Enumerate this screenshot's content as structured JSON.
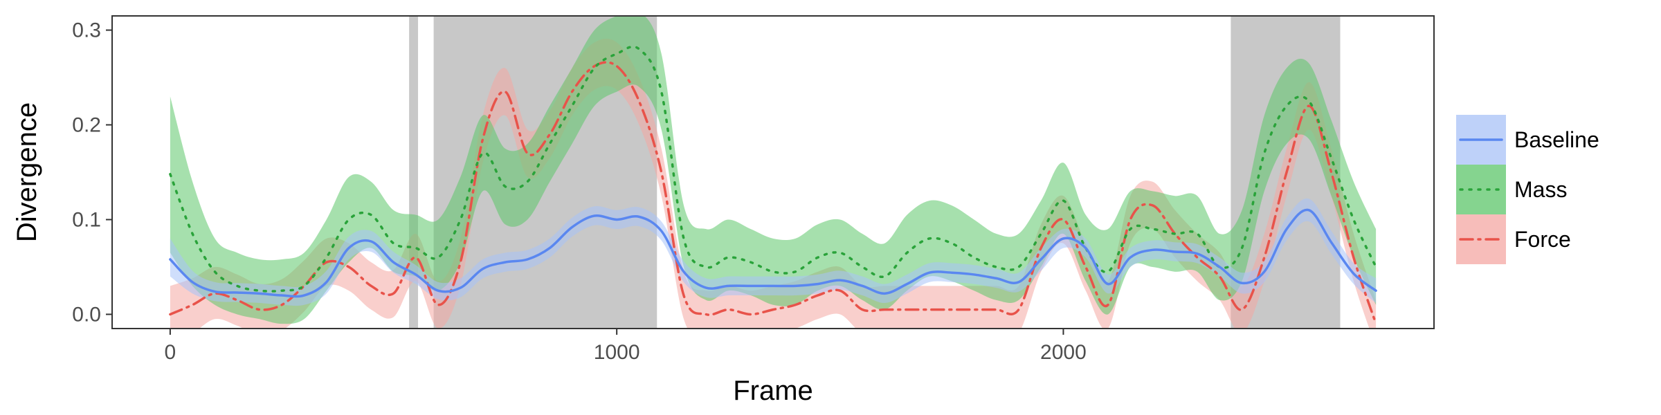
{
  "chart_data": {
    "type": "line",
    "title": "",
    "xlabel": "Frame",
    "ylabel": "Divergence",
    "xlim": [
      -130,
      2830
    ],
    "ylim": [
      -0.015,
      0.315
    ],
    "x_ticks": [
      0,
      1000,
      2000
    ],
    "x_tick_labels": [
      "0",
      "1000",
      "2000"
    ],
    "y_ticks": [
      0.0,
      0.1,
      0.2,
      0.3
    ],
    "y_tick_labels": [
      "0.0",
      "0.1",
      "0.2",
      "0.3"
    ],
    "grid": false,
    "legend_position": "right",
    "shaded_regions": [
      {
        "x_start": 535,
        "x_end": 555
      },
      {
        "x_start": 590,
        "x_end": 1090
      },
      {
        "x_start": 2375,
        "x_end": 2620
      }
    ],
    "series": [
      {
        "name": "Baseline",
        "line_color": "#5a87f0",
        "fill_color": "#a8c2f7",
        "line_style": "solid",
        "x": [
          0,
          50,
          100,
          150,
          200,
          250,
          300,
          350,
          400,
          450,
          500,
          550,
          600,
          650,
          700,
          750,
          800,
          850,
          900,
          950,
          1000,
          1050,
          1100,
          1150,
          1200,
          1250,
          1300,
          1350,
          1400,
          1450,
          1500,
          1550,
          1600,
          1650,
          1700,
          1750,
          1800,
          1850,
          1900,
          1950,
          2000,
          2050,
          2100,
          2150,
          2200,
          2250,
          2300,
          2350,
          2400,
          2450,
          2500,
          2550,
          2600,
          2650,
          2700
        ],
        "y": [
          0.058,
          0.034,
          0.024,
          0.023,
          0.022,
          0.02,
          0.02,
          0.034,
          0.07,
          0.077,
          0.055,
          0.042,
          0.025,
          0.028,
          0.048,
          0.055,
          0.058,
          0.07,
          0.092,
          0.104,
          0.1,
          0.103,
          0.088,
          0.045,
          0.028,
          0.03,
          0.03,
          0.03,
          0.03,
          0.032,
          0.036,
          0.03,
          0.022,
          0.032,
          0.044,
          0.044,
          0.042,
          0.038,
          0.034,
          0.058,
          0.08,
          0.07,
          0.032,
          0.06,
          0.068,
          0.066,
          0.064,
          0.05,
          0.033,
          0.045,
          0.09,
          0.11,
          0.076,
          0.043,
          0.025
        ],
        "lower": [
          0.04,
          0.022,
          0.014,
          0.013,
          0.012,
          0.01,
          0.01,
          0.022,
          0.058,
          0.066,
          0.044,
          0.032,
          0.016,
          0.018,
          0.038,
          0.045,
          0.048,
          0.06,
          0.082,
          0.094,
          0.09,
          0.093,
          0.078,
          0.034,
          0.018,
          0.02,
          0.02,
          0.02,
          0.02,
          0.022,
          0.026,
          0.02,
          0.012,
          0.022,
          0.034,
          0.034,
          0.032,
          0.028,
          0.024,
          0.046,
          0.07,
          0.06,
          0.022,
          0.05,
          0.058,
          0.056,
          0.054,
          0.04,
          0.022,
          0.034,
          0.078,
          0.098,
          0.064,
          0.032,
          0.012
        ],
        "upper": [
          0.08,
          0.046,
          0.034,
          0.033,
          0.032,
          0.03,
          0.03,
          0.046,
          0.082,
          0.088,
          0.066,
          0.052,
          0.034,
          0.038,
          0.058,
          0.065,
          0.068,
          0.08,
          0.102,
          0.114,
          0.11,
          0.113,
          0.098,
          0.056,
          0.038,
          0.04,
          0.04,
          0.04,
          0.04,
          0.042,
          0.046,
          0.04,
          0.032,
          0.042,
          0.054,
          0.054,
          0.052,
          0.048,
          0.044,
          0.07,
          0.09,
          0.08,
          0.042,
          0.07,
          0.078,
          0.076,
          0.074,
          0.06,
          0.044,
          0.056,
          0.102,
          0.122,
          0.088,
          0.054,
          0.038
        ]
      },
      {
        "name": "Mass",
        "line_color": "#2aa33a",
        "fill_color": "#5cc66a",
        "line_style": "dotted",
        "x": [
          0,
          50,
          100,
          150,
          200,
          250,
          300,
          350,
          400,
          450,
          500,
          550,
          600,
          650,
          700,
          750,
          800,
          850,
          900,
          950,
          1000,
          1050,
          1100,
          1150,
          1200,
          1250,
          1300,
          1350,
          1400,
          1450,
          1500,
          1550,
          1600,
          1650,
          1700,
          1750,
          1800,
          1850,
          1900,
          1950,
          2000,
          2050,
          2100,
          2150,
          2200,
          2250,
          2300,
          2350,
          2400,
          2450,
          2500,
          2550,
          2600,
          2650,
          2700
        ],
        "y": [
          0.148,
          0.085,
          0.045,
          0.03,
          0.025,
          0.025,
          0.03,
          0.06,
          0.1,
          0.105,
          0.075,
          0.07,
          0.06,
          0.1,
          0.17,
          0.135,
          0.14,
          0.18,
          0.22,
          0.26,
          0.275,
          0.28,
          0.235,
          0.08,
          0.05,
          0.06,
          0.055,
          0.045,
          0.045,
          0.06,
          0.065,
          0.05,
          0.04,
          0.065,
          0.08,
          0.075,
          0.06,
          0.05,
          0.05,
          0.085,
          0.12,
          0.07,
          0.045,
          0.09,
          0.09,
          0.085,
          0.085,
          0.05,
          0.07,
          0.17,
          0.22,
          0.225,
          0.165,
          0.1,
          0.05
        ],
        "lower": [
          0.065,
          0.03,
          0.01,
          0.0,
          -0.005,
          -0.01,
          -0.005,
          0.025,
          0.055,
          0.07,
          0.045,
          0.04,
          0.025,
          0.055,
          0.13,
          0.095,
          0.1,
          0.14,
          0.18,
          0.22,
          0.235,
          0.24,
          0.195,
          0.05,
          0.015,
          0.025,
          0.02,
          0.01,
          0.01,
          0.025,
          0.03,
          0.015,
          0.005,
          0.025,
          0.04,
          0.035,
          0.025,
          0.015,
          0.015,
          0.05,
          0.085,
          0.035,
          0.0,
          0.05,
          0.05,
          0.045,
          0.045,
          0.015,
          0.035,
          0.13,
          0.18,
          0.185,
          0.125,
          0.06,
          0.01
        ],
        "upper": [
          0.23,
          0.14,
          0.08,
          0.065,
          0.058,
          0.058,
          0.065,
          0.1,
          0.145,
          0.14,
          0.11,
          0.105,
          0.1,
          0.145,
          0.21,
          0.175,
          0.18,
          0.22,
          0.26,
          0.3,
          0.315,
          0.32,
          0.275,
          0.115,
          0.09,
          0.1,
          0.09,
          0.08,
          0.08,
          0.095,
          0.1,
          0.085,
          0.075,
          0.105,
          0.12,
          0.115,
          0.1,
          0.085,
          0.085,
          0.12,
          0.16,
          0.105,
          0.09,
          0.13,
          0.13,
          0.125,
          0.125,
          0.085,
          0.11,
          0.21,
          0.26,
          0.265,
          0.205,
          0.14,
          0.09
        ]
      },
      {
        "name": "Force",
        "line_color": "#e8534a",
        "fill_color": "#f4a7a3",
        "line_style": "dashdot",
        "x": [
          0,
          50,
          100,
          150,
          200,
          250,
          300,
          350,
          400,
          450,
          500,
          550,
          600,
          650,
          700,
          750,
          800,
          850,
          900,
          950,
          1000,
          1050,
          1100,
          1150,
          1200,
          1250,
          1300,
          1350,
          1400,
          1450,
          1500,
          1550,
          1600,
          1650,
          1700,
          1750,
          1800,
          1850,
          1900,
          1950,
          2000,
          2050,
          2100,
          2150,
          2200,
          2250,
          2300,
          2350,
          2400,
          2450,
          2500,
          2550,
          2600,
          2650,
          2700
        ],
        "y": [
          0.0,
          0.01,
          0.022,
          0.015,
          0.005,
          0.01,
          0.03,
          0.055,
          0.05,
          0.03,
          0.022,
          0.06,
          0.01,
          0.055,
          0.185,
          0.235,
          0.17,
          0.19,
          0.235,
          0.262,
          0.262,
          0.225,
          0.15,
          0.02,
          0.0,
          0.005,
          0.0,
          0.005,
          0.01,
          0.02,
          0.025,
          0.005,
          0.005,
          0.005,
          0.005,
          0.005,
          0.005,
          0.005,
          0.005,
          0.07,
          0.1,
          0.05,
          0.01,
          0.1,
          0.115,
          0.085,
          0.06,
          0.04,
          0.005,
          0.06,
          0.15,
          0.22,
          0.15,
          0.06,
          -0.01
        ],
        "lower": [
          -0.03,
          -0.02,
          -0.005,
          -0.012,
          -0.022,
          -0.017,
          0.003,
          0.03,
          0.025,
          0.005,
          -0.003,
          0.035,
          -0.015,
          0.03,
          0.16,
          0.21,
          0.145,
          0.165,
          0.21,
          0.237,
          0.237,
          0.2,
          0.125,
          -0.005,
          -0.025,
          -0.02,
          -0.025,
          -0.02,
          -0.015,
          -0.005,
          0.0,
          -0.02,
          -0.02,
          -0.02,
          -0.02,
          -0.02,
          -0.02,
          -0.02,
          -0.02,
          0.045,
          0.075,
          0.025,
          -0.015,
          0.075,
          0.09,
          0.06,
          0.035,
          0.015,
          -0.02,
          0.035,
          0.125,
          0.195,
          0.125,
          0.035,
          -0.035
        ],
        "upper": [
          0.03,
          0.038,
          0.05,
          0.042,
          0.032,
          0.037,
          0.057,
          0.08,
          0.075,
          0.055,
          0.047,
          0.085,
          0.035,
          0.08,
          0.21,
          0.26,
          0.195,
          0.215,
          0.26,
          0.287,
          0.287,
          0.25,
          0.175,
          0.045,
          0.025,
          0.03,
          0.025,
          0.03,
          0.035,
          0.045,
          0.05,
          0.03,
          0.03,
          0.03,
          0.03,
          0.03,
          0.03,
          0.03,
          0.03,
          0.095,
          0.125,
          0.075,
          0.035,
          0.125,
          0.14,
          0.11,
          0.085,
          0.065,
          0.03,
          0.085,
          0.175,
          0.245,
          0.175,
          0.085,
          0.015
        ]
      }
    ]
  }
}
